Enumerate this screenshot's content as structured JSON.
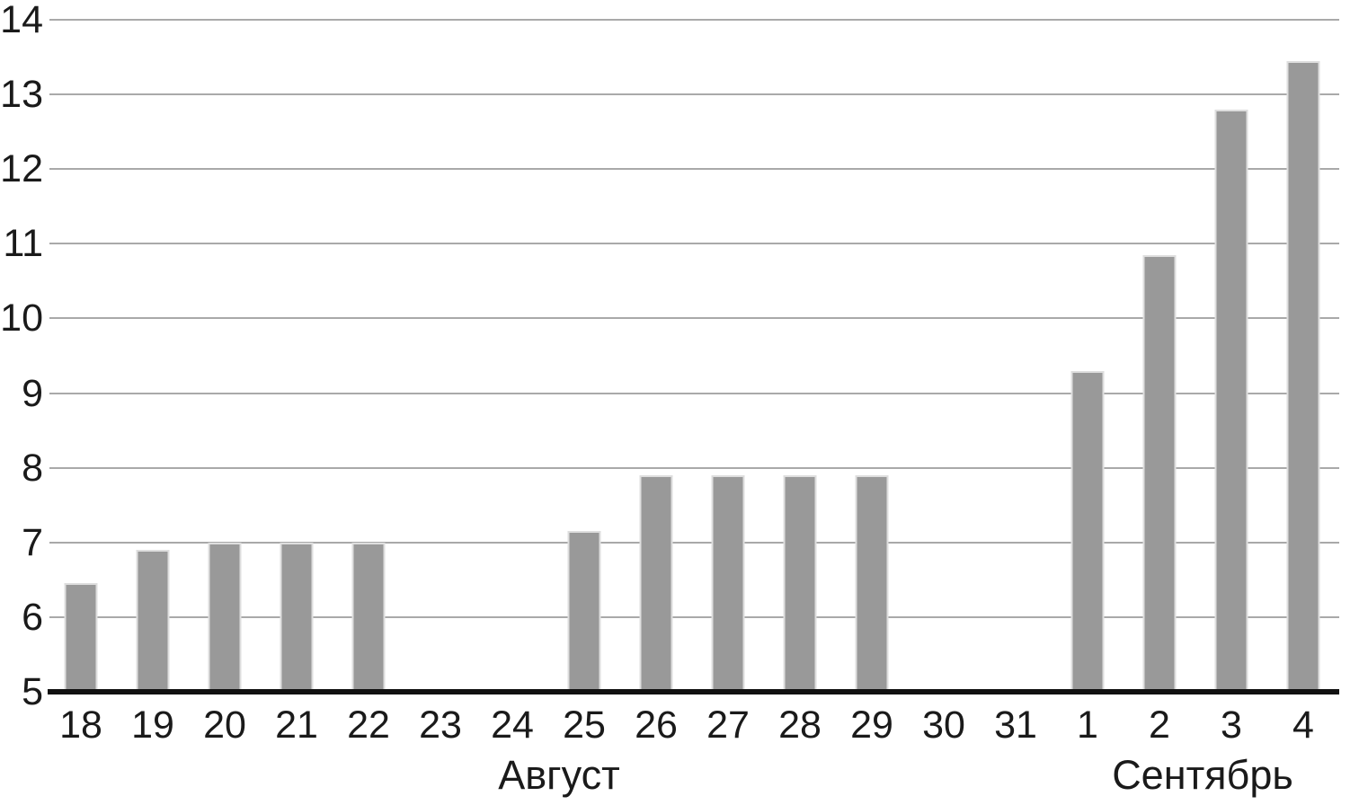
{
  "chart_data": {
    "type": "bar",
    "title": "",
    "xlabel": "",
    "ylabel": "",
    "categories": [
      "18",
      "19",
      "20",
      "21",
      "22",
      "23",
      "24",
      "25",
      "26",
      "27",
      "28",
      "29",
      "30",
      "31",
      "1",
      "2",
      "3",
      "4"
    ],
    "values": [
      6.45,
      6.9,
      7,
      7,
      7,
      null,
      null,
      7.15,
      7.9,
      7.9,
      7.9,
      7.9,
      null,
      null,
      9.3,
      10.85,
      12.8,
      13.45
    ],
    "month_groups": [
      {
        "label": "Август",
        "from": 0,
        "to": 13,
        "label_center_index": 6.65
      },
      {
        "label": "Сентябрь",
        "from": 14,
        "to": 17,
        "label_center_index": 15.6
      }
    ],
    "y_ticks": [
      5,
      6,
      7,
      8,
      9,
      10,
      11,
      12,
      13,
      14
    ],
    "ylim": [
      5,
      14
    ],
    "grid": true,
    "legend": null,
    "colors": {
      "bar_fill": "#999999",
      "bar_border": "#dedede",
      "gridline": "#a9a9a9",
      "axis": "#111111",
      "text": "#1a1a1a"
    }
  }
}
